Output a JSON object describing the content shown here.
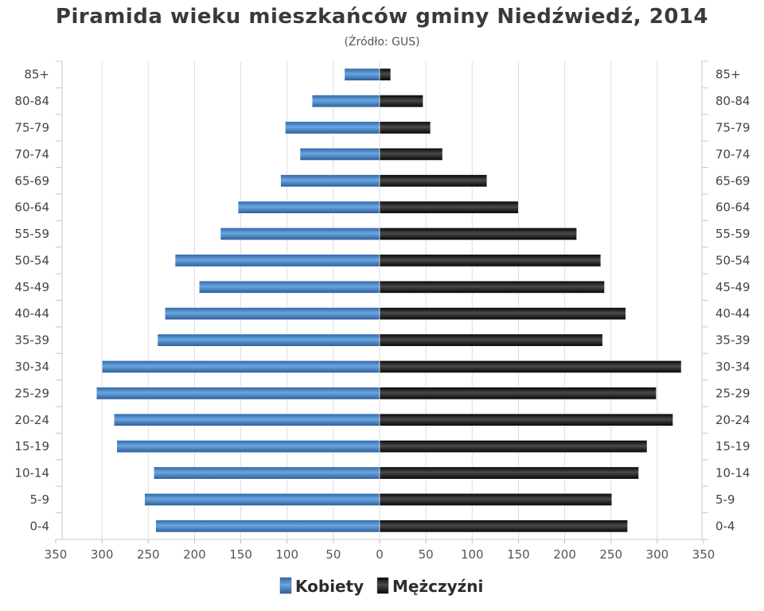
{
  "chart_data": {
    "type": "bar",
    "orientation": "horizontal",
    "title": "Piramida wieku mieszkańców gminy Niedźwiedź, 2014",
    "subtitle": "(Źródło: GUS)",
    "categories": [
      "85+",
      "80-84",
      "75-79",
      "70-74",
      "65-69",
      "60-64",
      "55-59",
      "50-54",
      "45-49",
      "40-44",
      "35-39",
      "30-34",
      "25-29",
      "20-24",
      "15-19",
      "10-14",
      "5-9",
      "0-4"
    ],
    "series": [
      {
        "name": "Kobiety",
        "color": "#3e79b8",
        "side": "left",
        "values": [
          38,
          73,
          102,
          86,
          107,
          153,
          172,
          221,
          195,
          232,
          240,
          300,
          306,
          287,
          284,
          244,
          254,
          242
        ]
      },
      {
        "name": "Mężczyźni",
        "color": "#111111",
        "side": "right",
        "values": [
          12,
          47,
          55,
          68,
          116,
          150,
          213,
          239,
          243,
          266,
          241,
          326,
          299,
          317,
          289,
          280,
          251,
          268
        ]
      }
    ],
    "xlim": [
      -350,
      350
    ],
    "xticks": [
      -350,
      -300,
      -250,
      -200,
      -150,
      -100,
      -50,
      0,
      50,
      100,
      150,
      200,
      250,
      300,
      350
    ],
    "xtick_labels": [
      "350",
      "300",
      "250",
      "200",
      "150",
      "100",
      "50",
      "0",
      "50",
      "100",
      "150",
      "200",
      "250",
      "300",
      "350"
    ],
    "grid": true,
    "legend_position": "bottom-center"
  }
}
